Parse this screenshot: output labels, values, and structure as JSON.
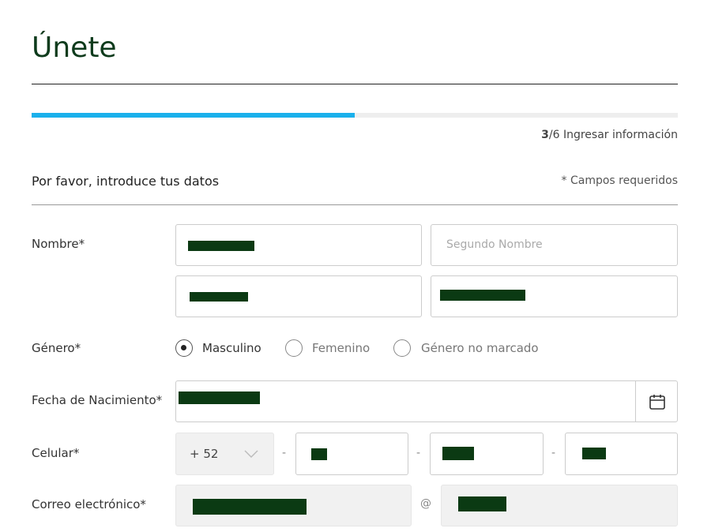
{
  "header": {
    "title": "Únete"
  },
  "progress": {
    "step": 3,
    "separator": "/",
    "total": 6,
    "label": "Ingresar información"
  },
  "section": {
    "title": "Por favor, introduce tus datos",
    "required_note": "* Campos requeridos"
  },
  "form": {
    "name": {
      "label": "Nombre*",
      "middle_name_placeholder": "Segundo Nombre"
    },
    "gender": {
      "label": "Género*",
      "options": [
        "Masculino",
        "Femenino",
        "Género no marcado"
      ]
    },
    "birth_date": {
      "label": "Fecha de Nacimiento*"
    },
    "phone": {
      "label": "Celular*",
      "country_code": "+ 52",
      "separators": [
        "-",
        "-",
        "-"
      ]
    },
    "email": {
      "label": "Correo electrónico*",
      "at": "@"
    }
  }
}
